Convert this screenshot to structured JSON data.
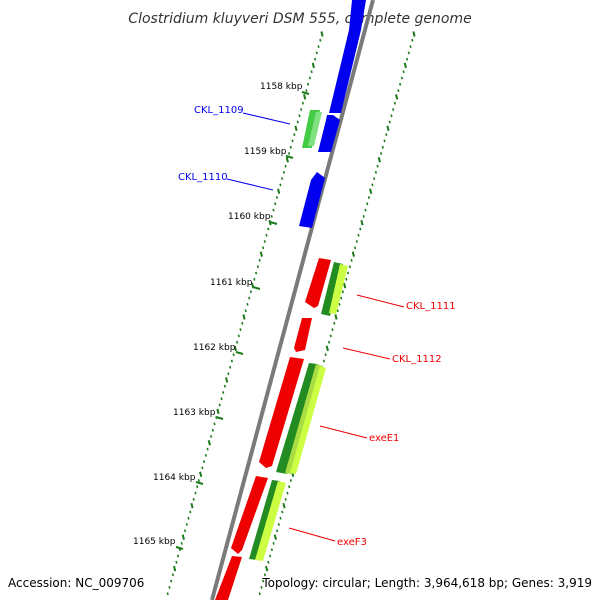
{
  "title": "Clostridium kluyveri DSM 555, complete genome",
  "accession": "Accession: NC_009706",
  "topology": "Topology: circular; Length: 3,964,618 bp; Genes: 3,919",
  "colors": {
    "backbone": "#808080",
    "forward_gene": "#0000ee",
    "reverse_gene": "#ee0000",
    "tick_green": "#1a7a1a",
    "bright_green": "#44cc44",
    "dark_green": "#228b22",
    "yellow_green": "#ccff44"
  },
  "kbp_labels": [
    "1158 kbp",
    "1159 kbp",
    "1160 kbp",
    "1161 kbp",
    "1162 kbp",
    "1163 kbp",
    "1164 kbp",
    "1165 kbp"
  ],
  "genes": [
    {
      "label": "CKL_1109",
      "strand": "forward"
    },
    {
      "label": "CKL_1110",
      "strand": "forward"
    },
    {
      "label": "CKL_1111",
      "strand": "reverse"
    },
    {
      "label": "CKL_1112",
      "strand": "reverse"
    },
    {
      "label": "exeE1",
      "strand": "reverse"
    },
    {
      "label": "exeF3",
      "strand": "reverse"
    }
  ]
}
